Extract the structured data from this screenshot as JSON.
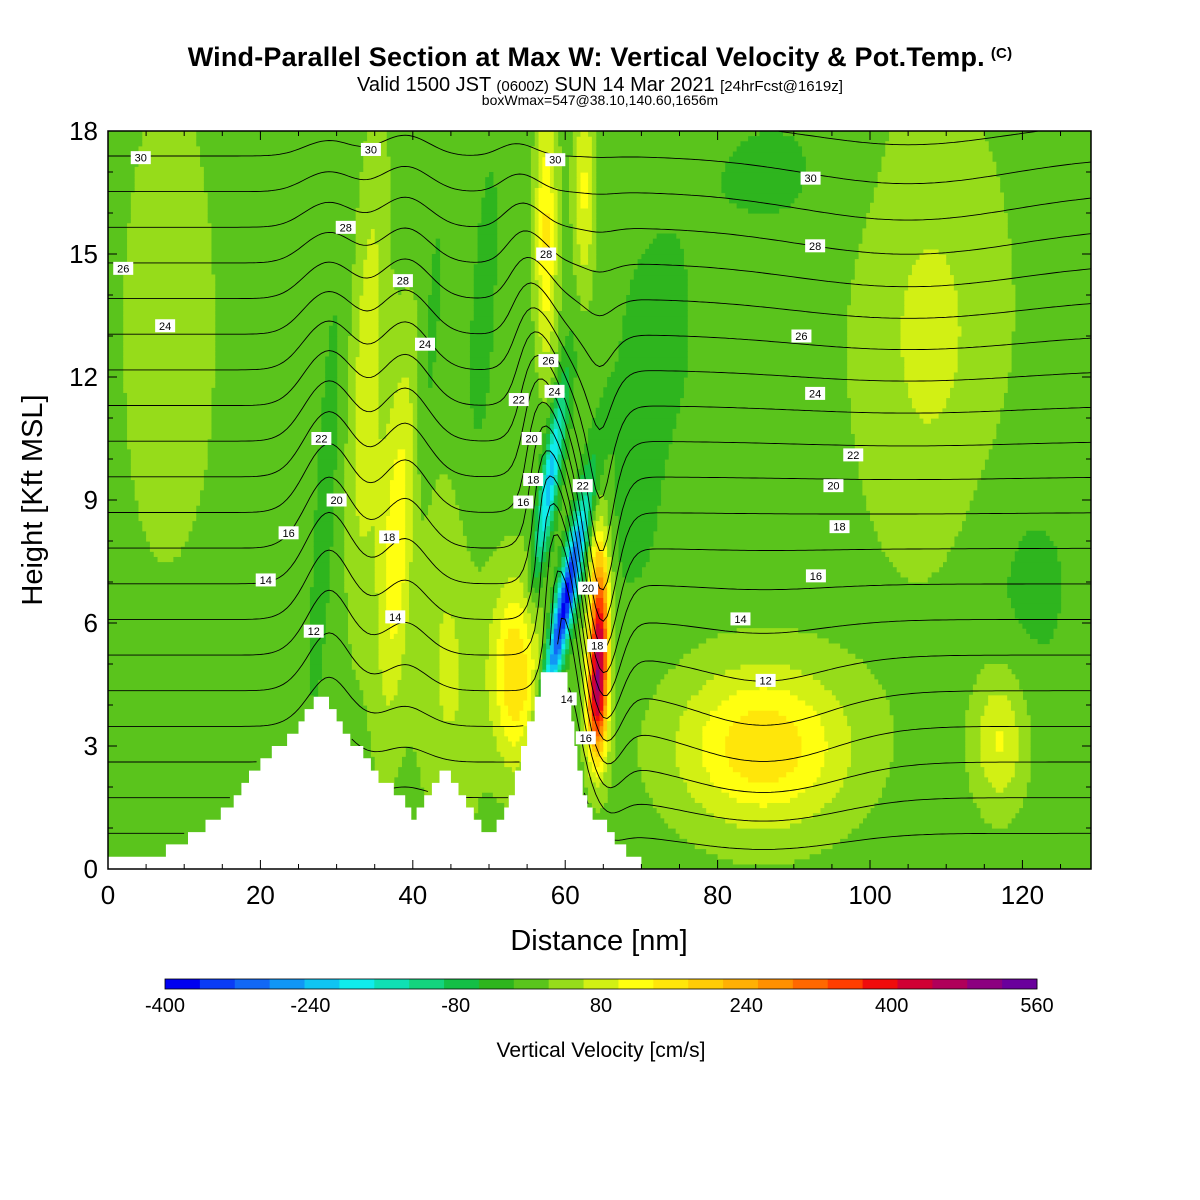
{
  "header": {
    "title": "Wind-Parallel Section at Max W: Vertical Velocity & Pot.Temp.",
    "title_mark": "(C)",
    "valid_main_a": "Valid 1500 JST",
    "valid_small_a": "(0600Z)",
    "valid_main_b": "SUN 14 Mar 2021",
    "valid_small_b": "[24hrFcst@1619z]",
    "box_info": "boxWmax=547@38.10,140.60,1656m"
  },
  "chart_data": {
    "type": "heatmap",
    "xlabel": "Distance [nm]",
    "ylabel": "Height [Kft MSL]",
    "xlim": [
      0,
      129
    ],
    "ylim": [
      0,
      18
    ],
    "x_ticks": [
      0,
      20,
      40,
      60,
      80,
      100,
      120
    ],
    "y_ticks": [
      0,
      3,
      6,
      9,
      12,
      15,
      18
    ],
    "grid": false,
    "background_value_cm_s": 20,
    "colorbar": {
      "title": "Vertical Velocity [cm/s]",
      "tick_labels": [
        -400,
        -240,
        -80,
        80,
        240,
        400,
        560
      ],
      "levels": [
        -400,
        -360,
        -320,
        -280,
        -240,
        -200,
        -160,
        -120,
        -80,
        -40,
        0,
        40,
        80,
        120,
        160,
        200,
        240,
        280,
        320,
        360,
        400,
        440,
        480,
        520,
        560
      ],
      "colors": [
        "#0000f0",
        "#0a3cf5",
        "#1268f5",
        "#1196f5",
        "#10c4f2",
        "#10ecec",
        "#10e0b4",
        "#14d47e",
        "#14bf46",
        "#2eb51e",
        "#5ac41c",
        "#96dc1a",
        "#d2f014",
        "#ffff10",
        "#ffe60a",
        "#ffcc06",
        "#ffb004",
        "#ff9000",
        "#ff6800",
        "#ff3e00",
        "#f00c0c",
        "#d00034",
        "#b0005a",
        "#8c0080",
        "#6a009c"
      ]
    },
    "terrain": [
      [
        0,
        0.3
      ],
      [
        7.6,
        0.3
      ],
      [
        7.6,
        0.6
      ],
      [
        10.5,
        0.6
      ],
      [
        10.5,
        0.9
      ],
      [
        12.8,
        0.9
      ],
      [
        12.8,
        1.2
      ],
      [
        14.8,
        1.2
      ],
      [
        14.8,
        1.5
      ],
      [
        16.5,
        1.5
      ],
      [
        16.5,
        1.8
      ],
      [
        17.5,
        1.8
      ],
      [
        17.5,
        2.1
      ],
      [
        18.5,
        2.1
      ],
      [
        18.5,
        2.4
      ],
      [
        20,
        2.4
      ],
      [
        20,
        2.7
      ],
      [
        21.5,
        2.7
      ],
      [
        21.5,
        3.0
      ],
      [
        23.5,
        3.0
      ],
      [
        23.5,
        3.3
      ],
      [
        25,
        3.3
      ],
      [
        25,
        3.6
      ],
      [
        25.8,
        3.6
      ],
      [
        25.8,
        3.9
      ],
      [
        27,
        3.9
      ],
      [
        27,
        4.2
      ],
      [
        29,
        4.2
      ],
      [
        29,
        3.9
      ],
      [
        30,
        3.9
      ],
      [
        30,
        3.6
      ],
      [
        30.8,
        3.6
      ],
      [
        30.8,
        3.3
      ],
      [
        31.8,
        3.3
      ],
      [
        31.8,
        3.0
      ],
      [
        33.5,
        3.0
      ],
      [
        33.5,
        2.7
      ],
      [
        34.5,
        2.7
      ],
      [
        34.5,
        2.4
      ],
      [
        35.5,
        2.4
      ],
      [
        35.5,
        2.1
      ],
      [
        37.5,
        2.1
      ],
      [
        37.5,
        1.8
      ],
      [
        39,
        1.8
      ],
      [
        39,
        1.5
      ],
      [
        39.8,
        1.5
      ],
      [
        39.8,
        1.2
      ],
      [
        40.5,
        1.2
      ],
      [
        40.5,
        1.5
      ],
      [
        41.5,
        1.5
      ],
      [
        41.5,
        1.8
      ],
      [
        42.5,
        1.8
      ],
      [
        42.5,
        2.1
      ],
      [
        43.5,
        2.1
      ],
      [
        43.5,
        2.4
      ],
      [
        45,
        2.4
      ],
      [
        45,
        2.1
      ],
      [
        46,
        2.1
      ],
      [
        46,
        1.8
      ],
      [
        47,
        1.8
      ],
      [
        47,
        1.5
      ],
      [
        48,
        1.5
      ],
      [
        48,
        1.2
      ],
      [
        49,
        1.2
      ],
      [
        49,
        0.9
      ],
      [
        51,
        0.9
      ],
      [
        51,
        1.2
      ],
      [
        52,
        1.2
      ],
      [
        52,
        1.5
      ],
      [
        52.6,
        1.5
      ],
      [
        52.6,
        1.8
      ],
      [
        53.4,
        1.8
      ],
      [
        53.4,
        2.4
      ],
      [
        54.2,
        2.4
      ],
      [
        54.2,
        3.0
      ],
      [
        55,
        3.0
      ],
      [
        55,
        3.6
      ],
      [
        56,
        3.6
      ],
      [
        56,
        4.2
      ],
      [
        56.8,
        4.2
      ],
      [
        56.8,
        4.8
      ],
      [
        60.3,
        4.8
      ],
      [
        60.3,
        4.2
      ],
      [
        60.8,
        4.2
      ],
      [
        60.8,
        3.6
      ],
      [
        61.2,
        3.6
      ],
      [
        61.2,
        3.0
      ],
      [
        61.6,
        3.0
      ],
      [
        61.6,
        2.4
      ],
      [
        62.3,
        2.4
      ],
      [
        62.3,
        1.8
      ],
      [
        62.9,
        1.8
      ],
      [
        62.9,
        1.5
      ],
      [
        63.6,
        1.5
      ],
      [
        63.6,
        1.2
      ],
      [
        65.5,
        1.2
      ],
      [
        65.5,
        0.9
      ],
      [
        66.5,
        0.9
      ],
      [
        66.5,
        0.6
      ],
      [
        68,
        0.6
      ],
      [
        68,
        0.3
      ],
      [
        70,
        0.3
      ],
      [
        70,
        0
      ]
    ],
    "vertical_velocity_features": [
      {
        "x": 60,
        "y": 6.5,
        "value_cm_s": -400,
        "sigma_x": 0.9,
        "sigma_y": 1.8,
        "tilt_x_per_kft": -1.05
      },
      {
        "x": 58,
        "y": 9.5,
        "value_cm_s": -250,
        "sigma_x": 0.8,
        "sigma_y": 1.6,
        "tilt_x_per_kft": -0.75
      },
      {
        "x": 64.5,
        "y": 5.8,
        "value_cm_s": 410,
        "sigma_x": 0.9,
        "sigma_y": 1.6,
        "tilt_x_per_kft": 0
      },
      {
        "x": 64,
        "y": 4.0,
        "value_cm_s": 260,
        "sigma_x": 0.9,
        "sigma_y": 1.0,
        "tilt_x_per_kft": 0
      },
      {
        "x": 53.5,
        "y": 4.8,
        "value_cm_s": 180,
        "sigma_x": 2.2,
        "sigma_y": 1.6,
        "tilt_x_per_kft": 0
      },
      {
        "x": 86,
        "y": 3.0,
        "value_cm_s": 170,
        "sigma_x": 8,
        "sigma_y": 1.4,
        "tilt_x_per_kft": 0
      },
      {
        "x": 38,
        "y": 8.0,
        "value_cm_s": 130,
        "sigma_x": 1.8,
        "sigma_y": 3.2,
        "tilt_x_per_kft": -0.25
      },
      {
        "x": 34,
        "y": 12.0,
        "value_cm_s": 90,
        "sigma_x": 1.5,
        "sigma_y": 4.0,
        "tilt_x_per_kft": -0.2
      },
      {
        "x": 57.5,
        "y": 15.5,
        "value_cm_s": 150,
        "sigma_x": 1.0,
        "sigma_y": 2.2,
        "tilt_x_per_kft": 0
      },
      {
        "x": 62.5,
        "y": 16.5,
        "value_cm_s": 110,
        "sigma_x": 1.0,
        "sigma_y": 1.8,
        "tilt_x_per_kft": 0
      },
      {
        "x": 117,
        "y": 3.2,
        "value_cm_s": 110,
        "sigma_x": 2.5,
        "sigma_y": 1.2,
        "tilt_x_per_kft": 0
      },
      {
        "x": 108,
        "y": 13.0,
        "value_cm_s": 70,
        "sigma_x": 7,
        "sigma_y": 4,
        "tilt_x_per_kft": 0
      },
      {
        "x": 8,
        "y": 13.0,
        "value_cm_s": 60,
        "sigma_x": 4,
        "sigma_y": 4,
        "tilt_x_per_kft": 0
      },
      {
        "x": 45,
        "y": 5.0,
        "value_cm_s": 70,
        "sigma_x": 3,
        "sigma_y": 3,
        "tilt_x_per_kft": 0
      },
      {
        "x": 28.5,
        "y": 9.0,
        "value_cm_s": -40,
        "sigma_x": 1.0,
        "sigma_y": 4.0,
        "tilt_x_per_kft": -0.3
      },
      {
        "x": 41.5,
        "y": 11.0,
        "value_cm_s": -40,
        "sigma_x": 1.0,
        "sigma_y": 4.0,
        "tilt_x_per_kft": -0.4
      },
      {
        "x": 49,
        "y": 13.0,
        "value_cm_s": -30,
        "sigma_x": 1.6,
        "sigma_y": 4.5,
        "tilt_x_per_kft": -0.3
      },
      {
        "x": 72,
        "y": 13.0,
        "value_cm_s": -25,
        "sigma_x": 6,
        "sigma_y": 3,
        "tilt_x_per_kft": 0
      },
      {
        "x": 68,
        "y": 8.0,
        "value_cm_s": -20,
        "sigma_x": 4,
        "sigma_y": 2,
        "tilt_x_per_kft": 0
      },
      {
        "x": 120,
        "y": 7.0,
        "value_cm_s": -30,
        "sigma_x": 6,
        "sigma_y": 2.5,
        "tilt_x_per_kft": 0
      },
      {
        "x": 15,
        "y": 5.0,
        "value_cm_s": -10,
        "sigma_x": 6,
        "sigma_y": 2.5,
        "tilt_x_per_kft": 0
      },
      {
        "x": 88,
        "y": 17.0,
        "value_cm_s": -25,
        "sigma_x": 8,
        "sigma_y": 1.5,
        "tilt_x_per_kft": 0
      }
    ],
    "potential_temperature_contour_labels": [
      {
        "text": "30",
        "x": 4.3,
        "y": 17.35
      },
      {
        "text": "30",
        "x": 34.5,
        "y": 17.55
      },
      {
        "text": "30",
        "x": 58.7,
        "y": 17.3
      },
      {
        "text": "30",
        "x": 92.2,
        "y": 16.85
      },
      {
        "text": "28",
        "x": 31.2,
        "y": 15.65
      },
      {
        "text": "28",
        "x": 57.5,
        "y": 15.0
      },
      {
        "text": "28",
        "x": 38.7,
        "y": 14.35
      },
      {
        "text": "28",
        "x": 92.8,
        "y": 15.2
      },
      {
        "text": "26",
        "x": 2.0,
        "y": 14.65
      },
      {
        "text": "26",
        "x": 57.8,
        "y": 12.4
      },
      {
        "text": "26",
        "x": 91.0,
        "y": 13.0
      },
      {
        "text": "24",
        "x": 7.5,
        "y": 13.25
      },
      {
        "text": "24",
        "x": 41.6,
        "y": 12.8
      },
      {
        "text": "24",
        "x": 58.6,
        "y": 11.65
      },
      {
        "text": "24",
        "x": 92.8,
        "y": 11.6
      },
      {
        "text": "22",
        "x": 53.9,
        "y": 11.45
      },
      {
        "text": "22",
        "x": 28.0,
        "y": 10.5
      },
      {
        "text": "22",
        "x": 62.3,
        "y": 9.35
      },
      {
        "text": "22",
        "x": 97.8,
        "y": 10.1
      },
      {
        "text": "20",
        "x": 55.6,
        "y": 10.5
      },
      {
        "text": "20",
        "x": 30.0,
        "y": 9.0
      },
      {
        "text": "20",
        "x": 63.0,
        "y": 6.85
      },
      {
        "text": "20",
        "x": 95.2,
        "y": 9.35
      },
      {
        "text": "18",
        "x": 55.8,
        "y": 9.5
      },
      {
        "text": "18",
        "x": 36.9,
        "y": 8.1
      },
      {
        "text": "18",
        "x": 64.2,
        "y": 5.45
      },
      {
        "text": "18",
        "x": 96.0,
        "y": 8.35
      },
      {
        "text": "16",
        "x": 54.5,
        "y": 8.95
      },
      {
        "text": "16",
        "x": 23.7,
        "y": 8.2
      },
      {
        "text": "16",
        "x": 92.9,
        "y": 7.15
      },
      {
        "text": "16",
        "x": 62.7,
        "y": 3.2
      },
      {
        "text": "14",
        "x": 20.7,
        "y": 7.05
      },
      {
        "text": "14",
        "x": 37.7,
        "y": 6.15
      },
      {
        "text": "14",
        "x": 60.2,
        "y": 4.15
      },
      {
        "text": "14",
        "x": 83.0,
        "y": 6.1
      },
      {
        "text": "12",
        "x": 27.0,
        "y": 5.8
      },
      {
        "text": "12",
        "x": 86.3,
        "y": 4.6
      }
    ]
  }
}
